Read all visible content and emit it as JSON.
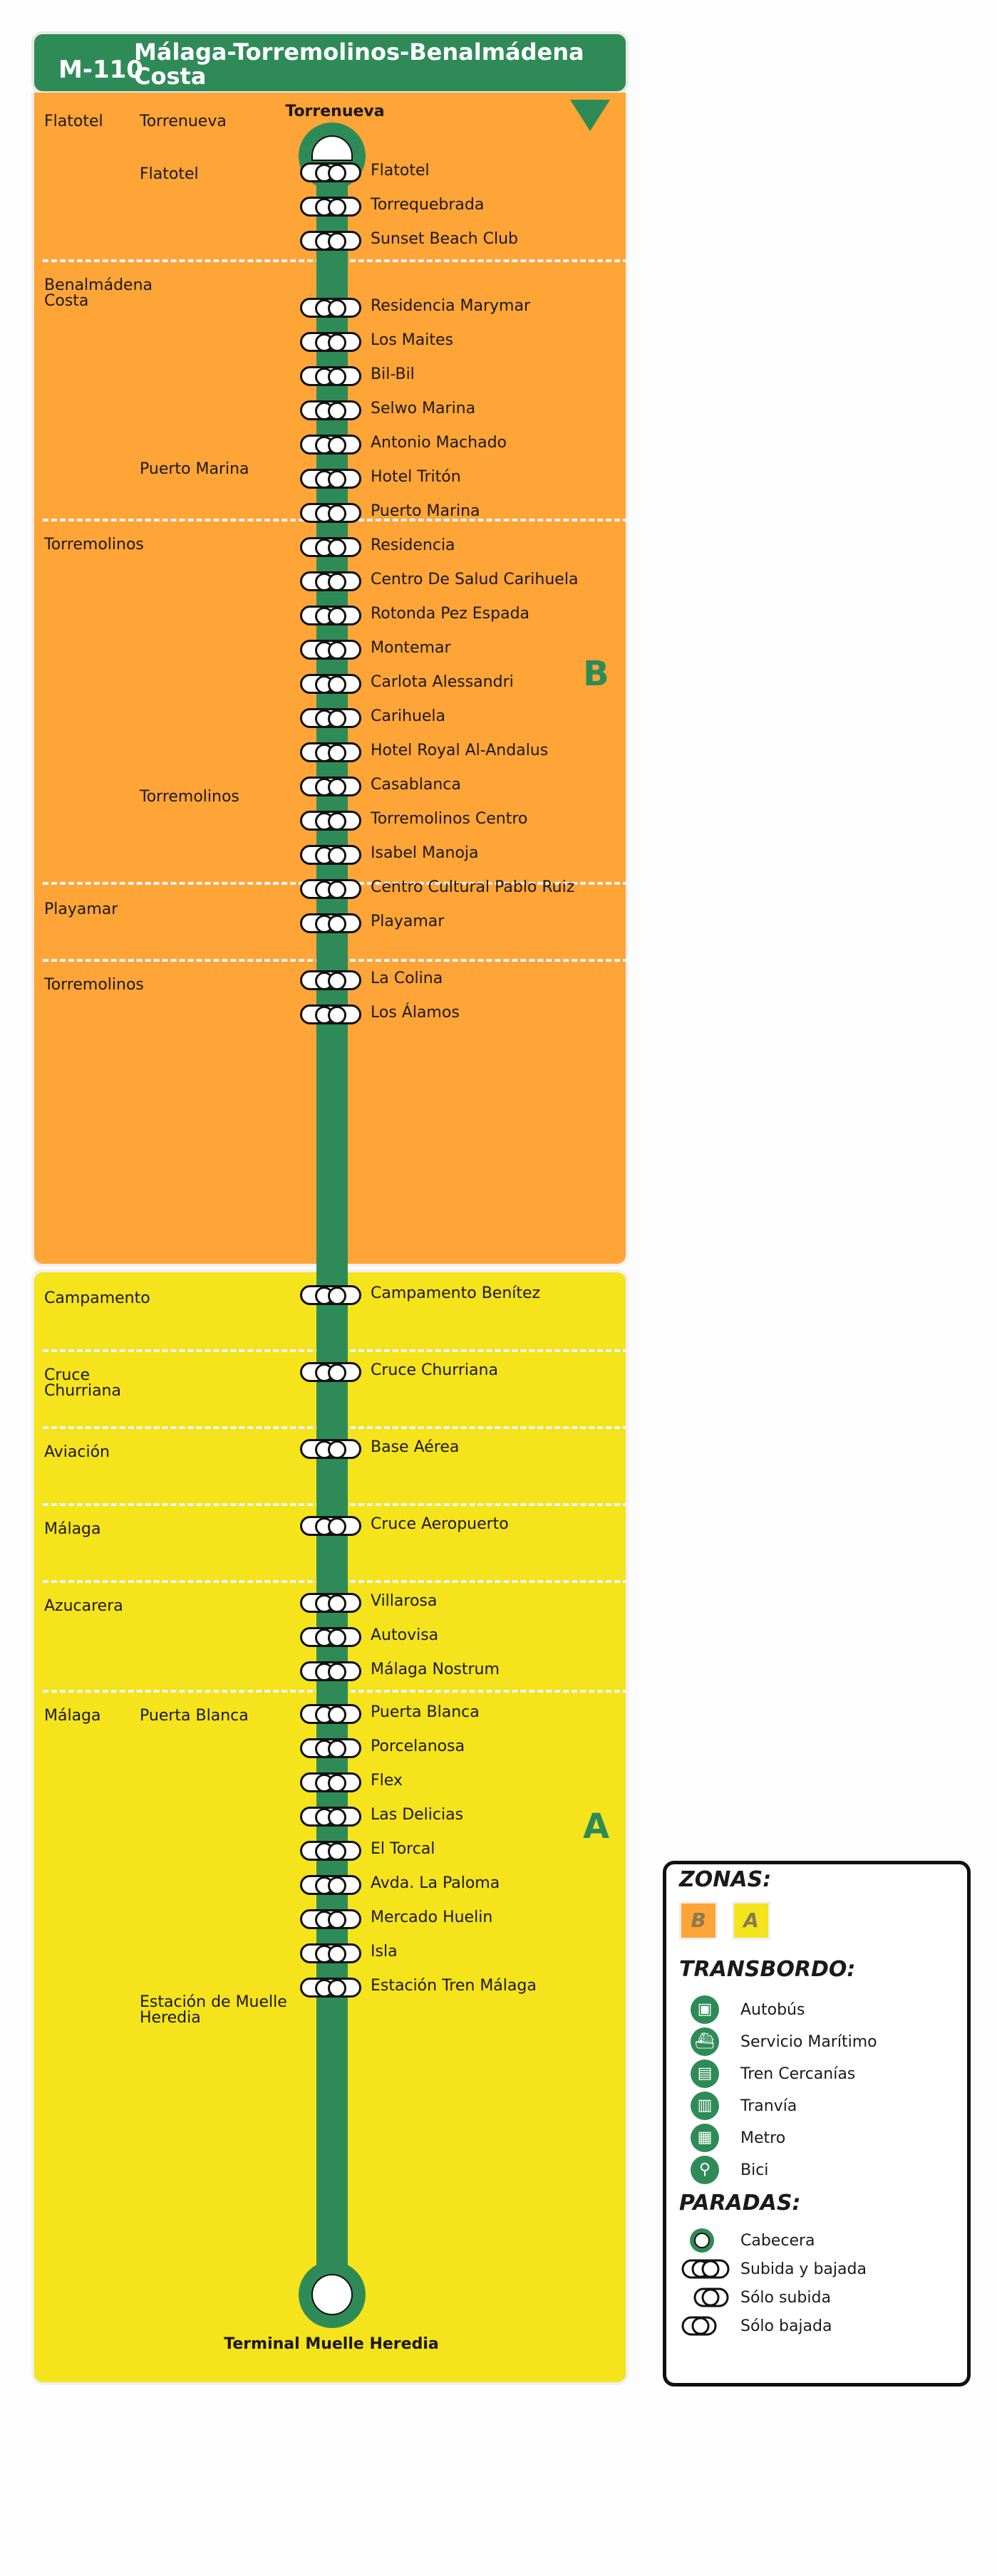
{
  "route": {
    "code": "M-110",
    "name": "Málaga-Torremolinos-Benalmádena Costa"
  },
  "terminals": {
    "start": "Torrenueva",
    "end": "Terminal Muelle Heredia"
  },
  "zones": {
    "orange_letter": "B",
    "yellow_letter": "A"
  },
  "colors": {
    "line": "#2e8b57",
    "zone_b": "#ffa436",
    "zone_a": "#f5e31b"
  },
  "groups": [
    {
      "municipio": "Flatotel",
      "nucleos": [
        "Torrenueva",
        "Flatotel"
      ]
    },
    {
      "municipio": "Benalmádena Costa",
      "nucleos": [
        "Puerto Marina"
      ]
    },
    {
      "municipio": "Torremolinos",
      "nucleos": [
        "Torremolinos"
      ]
    },
    {
      "municipio": "Playamar",
      "nucleos": []
    },
    {
      "municipio": "Torremolinos",
      "nucleos": []
    },
    {
      "municipio": "Campamento",
      "nucleos": []
    },
    {
      "municipio": "Cruce Churriana",
      "nucleos": []
    },
    {
      "municipio": "Aviación",
      "nucleos": []
    },
    {
      "municipio": "Málaga",
      "nucleos": []
    },
    {
      "municipio": "Azucarera",
      "nucleos": []
    },
    {
      "municipio": "Málaga",
      "nucleos": [
        "Puerta Blanca",
        "Estación de Muelle Heredia"
      ]
    }
  ],
  "stops": [
    "Flatotel",
    "Torrequebrada",
    "Sunset Beach Club",
    "Residencia Marymar",
    "Los Maites",
    "Bil-Bil",
    "Selwo Marina",
    "Antonio Machado",
    "Hotel Tritón",
    "Puerto Marina",
    "Residencia",
    "Centro De Salud Carihuela",
    "Rotonda Pez Espada",
    "Montemar",
    "Carlota Alessandri",
    "Carihuela",
    "Hotel Royal Al-Andalus",
    "Casablanca",
    "Torremolinos Centro",
    "Isabel Manoja",
    "Centro Cultural Pablo Ruiz",
    "Playamar",
    "La Colina",
    "Los Álamos",
    "Campamento Benítez",
    "Cruce Churriana",
    "Base Aérea",
    "Cruce Aeropuerto",
    "Villarosa",
    "Autovisa",
    "Málaga Nostrum",
    "Puerta Blanca",
    "Porcelanosa",
    "Flex",
    "Las Delicias",
    "El Torcal",
    "Avda. La Paloma",
    "Mercado Huelin",
    "Isla",
    "Estación Tren Málaga"
  ],
  "legend": {
    "zonas_title": "ZONAS:",
    "zone_b": "B",
    "zone_a": "A",
    "transbordo_title": "TRANSBORDO:",
    "transbordo": [
      {
        "icon": "bus-icon",
        "label": "Autobús"
      },
      {
        "icon": "ferry-icon",
        "label": "Servicio Marítimo"
      },
      {
        "icon": "train-icon",
        "label": "Tren Cercanías"
      },
      {
        "icon": "tram-icon",
        "label": "Tranvía"
      },
      {
        "icon": "metro-icon",
        "label": "Metro"
      },
      {
        "icon": "bike-icon",
        "label": "Bici"
      }
    ],
    "paradas_title": "PARADAS:",
    "paradas": [
      {
        "label": "Cabecera"
      },
      {
        "label": "Subida y bajada"
      },
      {
        "label": "Sólo subida"
      },
      {
        "label": "Sólo bajada"
      }
    ]
  }
}
